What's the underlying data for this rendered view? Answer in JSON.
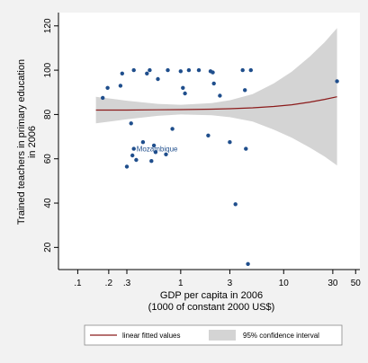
{
  "chart_data": {
    "type": "scatter",
    "title": "",
    "xlabel": "GDP per capita in 2006",
    "xlabel_line2": "(1000 of constant 2000 US$)",
    "ylabel": "Trained teachers in primary education",
    "ylabel_line2": "in 2006",
    "x_scale": "log",
    "xlim": [
      0.065,
      55
    ],
    "ylim": [
      10,
      126
    ],
    "x_ticks": [
      0.1,
      0.2,
      0.3,
      1,
      3,
      10,
      30,
      50
    ],
    "x_tick_labels": [
      ".1",
      ".2",
      ".3",
      "1",
      "3",
      "10",
      "30",
      "50"
    ],
    "y_ticks": [
      20,
      40,
      60,
      80,
      100,
      120
    ],
    "y_tick_labels": [
      "20",
      "40",
      "60",
      "80",
      "100",
      "120"
    ],
    "grid": false,
    "point_color": "#1f4e8c",
    "fit_color": "#8b1a1a",
    "ci_color": "#d4d4d4",
    "points": [
      {
        "x": 0.175,
        "y": 87.5
      },
      {
        "x": 0.195,
        "y": 92.0
      },
      {
        "x": 0.26,
        "y": 93.0
      },
      {
        "x": 0.27,
        "y": 98.5
      },
      {
        "x": 0.3,
        "y": 56.5
      },
      {
        "x": 0.33,
        "y": 76.0
      },
      {
        "x": 0.34,
        "y": 61.5
      },
      {
        "x": 0.35,
        "y": 64.5
      },
      {
        "x": 0.35,
        "y": 100.0
      },
      {
        "x": 0.37,
        "y": 59.5
      },
      {
        "x": 0.43,
        "y": 67.5
      },
      {
        "x": 0.47,
        "y": 98.5
      },
      {
        "x": 0.5,
        "y": 100.0
      },
      {
        "x": 0.52,
        "y": 59.0
      },
      {
        "x": 0.55,
        "y": 66.0
      },
      {
        "x": 0.57,
        "y": 63.0
      },
      {
        "x": 0.6,
        "y": 96.0
      },
      {
        "x": 0.72,
        "y": 62.0
      },
      {
        "x": 0.75,
        "y": 100.0
      },
      {
        "x": 0.83,
        "y": 73.5
      },
      {
        "x": 1.0,
        "y": 99.5
      },
      {
        "x": 1.05,
        "y": 92.0
      },
      {
        "x": 1.1,
        "y": 89.5
      },
      {
        "x": 1.2,
        "y": 100.0
      },
      {
        "x": 1.5,
        "y": 100.0
      },
      {
        "x": 1.85,
        "y": 70.5
      },
      {
        "x": 1.95,
        "y": 99.5
      },
      {
        "x": 2.05,
        "y": 99.0
      },
      {
        "x": 2.1,
        "y": 94.0
      },
      {
        "x": 2.4,
        "y": 88.5
      },
      {
        "x": 3.0,
        "y": 67.5
      },
      {
        "x": 3.4,
        "y": 39.5
      },
      {
        "x": 4.0,
        "y": 100.0
      },
      {
        "x": 4.2,
        "y": 91.0
      },
      {
        "x": 4.3,
        "y": 64.5
      },
      {
        "x": 4.5,
        "y": 12.5
      },
      {
        "x": 4.8,
        "y": 100.0
      },
      {
        "x": 33.0,
        "y": 95.0
      }
    ],
    "annotations": [
      {
        "text": "Mozambique",
        "x": 0.35,
        "y": 64.5
      }
    ],
    "fit": {
      "x": [
        0.15,
        0.3,
        0.6,
        1,
        2,
        3,
        5,
        8,
        12,
        18,
        25,
        33
      ],
      "y": [
        82.0,
        82.0,
        82.1,
        82.2,
        82.4,
        82.6,
        83.0,
        83.6,
        84.4,
        85.6,
        86.8,
        88.0
      ],
      "ci_low": [
        76.0,
        77.8,
        79.4,
        80.0,
        79.7,
        78.8,
        76.8,
        73.2,
        69.5,
        65.0,
        61.0,
        57.0
      ],
      "ci_high": [
        88.0,
        86.2,
        84.8,
        84.4,
        85.1,
        86.4,
        89.2,
        94.0,
        99.3,
        106.2,
        112.6,
        119.0
      ]
    },
    "legend": {
      "position": "bottom",
      "items": [
        {
          "label": "linear fitted values",
          "kind": "line"
        },
        {
          "label": "95% confidence interval",
          "kind": "area"
        }
      ]
    }
  }
}
